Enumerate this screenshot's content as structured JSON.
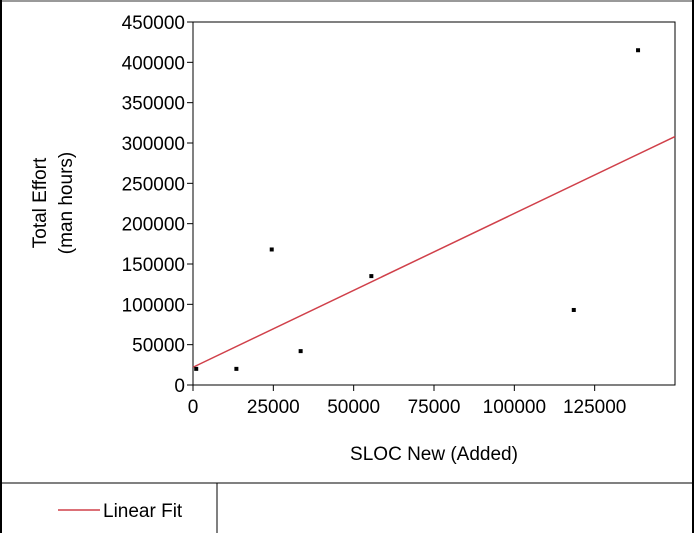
{
  "chart_data": {
    "type": "scatter",
    "title": "",
    "xlabel": "SLOC New (Added)",
    "ylabel_lines": [
      "Total Effort",
      "(man hours)"
    ],
    "xlim": [
      0,
      150000
    ],
    "ylim": [
      0,
      450000
    ],
    "x_ticks": [
      0,
      25000,
      50000,
      75000,
      100000,
      125000
    ],
    "x_tick_labels": [
      "0",
      "25000",
      "50000",
      "75000",
      "100000",
      "125000"
    ],
    "y_ticks": [
      0,
      50000,
      100000,
      150000,
      200000,
      250000,
      300000,
      350000,
      400000,
      450000
    ],
    "y_tick_labels": [
      "0",
      "50000",
      "100000",
      "150000",
      "200000",
      "250000",
      "300000",
      "350000",
      "400000",
      "450000"
    ],
    "grid": false,
    "points": [
      {
        "x": 1000,
        "y": 20000
      },
      {
        "x": 13500,
        "y": 20000
      },
      {
        "x": 24500,
        "y": 168000
      },
      {
        "x": 33500,
        "y": 42000
      },
      {
        "x": 55500,
        "y": 135000
      },
      {
        "x": 118500,
        "y": 93000
      },
      {
        "x": 138500,
        "y": 415000
      }
    ],
    "fit": {
      "name": "Linear Fit",
      "x": [
        0,
        150000
      ],
      "y": [
        22000,
        308000
      ],
      "color": "#d0404a"
    },
    "point_color": "#000000",
    "legend": {
      "position": "bottom-left",
      "label": "Linear Fit"
    }
  }
}
